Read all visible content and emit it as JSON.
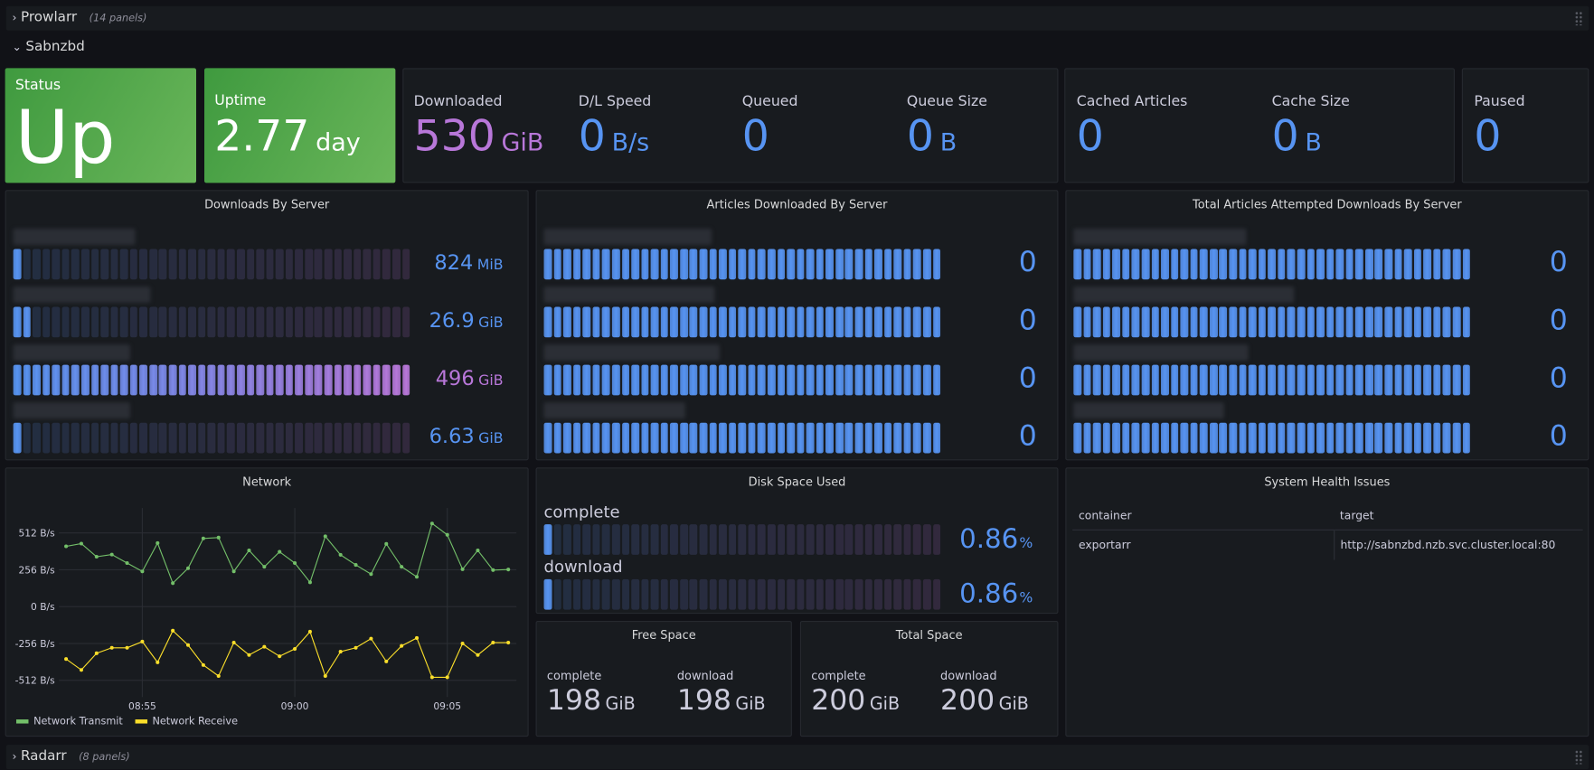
{
  "rows": {
    "prowlarr": {
      "title": "Prowlarr",
      "count": "(14 panels)",
      "collapsed": true
    },
    "sabnzbd": {
      "title": "Sabnzbd",
      "collapsed": false
    },
    "radarr": {
      "title": "Radarr",
      "count": "(8 panels)",
      "collapsed": true
    }
  },
  "colors": {
    "blue": "#5794F2",
    "purple": "#B877D9",
    "green": "#73BF69",
    "yellow": "#FADE2A",
    "panel": "#181B1F",
    "background": "#111217"
  },
  "stats": {
    "status": {
      "title": "Status",
      "value": "Up"
    },
    "uptime": {
      "title": "Uptime",
      "value": "2.77",
      "unit": "day"
    },
    "downloaded": {
      "title": "Downloaded",
      "value": "530",
      "unit": "GiB"
    },
    "dl_speed": {
      "title": "D/L Speed",
      "value": "0",
      "unit": "B/s"
    },
    "queued": {
      "title": "Queued",
      "value": "0"
    },
    "queue_size": {
      "title": "Queue Size",
      "value": "0",
      "unit": "B"
    },
    "cached_articles": {
      "title": "Cached Articles",
      "value": "0"
    },
    "cache_size": {
      "title": "Cache Size",
      "value": "0",
      "unit": "B"
    },
    "paused": {
      "title": "Paused",
      "value": "0"
    }
  },
  "gauges": [
    {
      "title": "Downloads By Server",
      "gradient": true,
      "rows": [
        {
          "value": "824",
          "unit": "MiB",
          "fill": 0.02,
          "color": "#5794F2"
        },
        {
          "value": "26.9",
          "unit": "GiB",
          "fill": 0.06,
          "color": "#5794F2"
        },
        {
          "value": "496",
          "unit": "GiB",
          "fill": 1.0,
          "color": "#B877D9"
        },
        {
          "value": "6.63",
          "unit": "GiB",
          "fill": 0.02,
          "color": "#5794F2"
        }
      ]
    },
    {
      "title": "Articles Downloaded By Server",
      "gradient": false,
      "rows": [
        {
          "value": "0",
          "fill": 1.0,
          "color": "#5794F2"
        },
        {
          "value": "0",
          "fill": 1.0,
          "color": "#5794F2"
        },
        {
          "value": "0",
          "fill": 1.0,
          "color": "#5794F2"
        },
        {
          "value": "0",
          "fill": 1.0,
          "color": "#5794F2"
        }
      ]
    },
    {
      "title": "Total Articles Attempted Downloads By Server",
      "gradient": false,
      "rows": [
        {
          "value": "0",
          "fill": 1.0,
          "color": "#5794F2"
        },
        {
          "value": "0",
          "fill": 1.0,
          "color": "#5794F2"
        },
        {
          "value": "0",
          "fill": 1.0,
          "color": "#5794F2"
        },
        {
          "value": "0",
          "fill": 1.0,
          "color": "#5794F2"
        }
      ]
    }
  ],
  "disk_used": {
    "title": "Disk Space Used",
    "rows": [
      {
        "label": "complete",
        "value": "0.86",
        "unit": "%",
        "fill": 0.0086
      },
      {
        "label": "download",
        "value": "0.86",
        "unit": "%",
        "fill": 0.0086
      }
    ]
  },
  "free_space": {
    "title": "Free Space",
    "items": [
      {
        "label": "complete",
        "value": "198",
        "unit": "GiB"
      },
      {
        "label": "download",
        "value": "198",
        "unit": "GiB"
      }
    ]
  },
  "total_space": {
    "title": "Total Space",
    "items": [
      {
        "label": "complete",
        "value": "200",
        "unit": "GiB"
      },
      {
        "label": "download",
        "value": "200",
        "unit": "GiB"
      }
    ]
  },
  "health": {
    "title": "System Health Issues",
    "columns": [
      "container",
      "target"
    ],
    "rows": [
      [
        "exportarr",
        "http://sabnzbd.nzb.svc.cluster.local:80"
      ]
    ]
  },
  "chart_data": {
    "type": "line",
    "title": "Network",
    "y_ticks": [
      "512 B/s",
      "256 B/s",
      "0 B/s",
      "-256 B/s",
      "-512 B/s"
    ],
    "y_tick_values": [
      512,
      256,
      0,
      -256,
      -512
    ],
    "x_ticks": [
      "08:55",
      "09:00",
      "09:05"
    ],
    "ylim": [
      -600,
      600
    ],
    "grid": true,
    "legend": "bottom-left",
    "x": [
      "08:52:30",
      "08:53:00",
      "08:53:30",
      "08:54:00",
      "08:54:30",
      "08:55:00",
      "08:55:30",
      "08:56:00",
      "08:56:30",
      "08:57:00",
      "08:57:30",
      "08:58:00",
      "08:58:30",
      "08:59:00",
      "08:59:30",
      "09:00:00",
      "09:00:30",
      "09:01:00",
      "09:01:30",
      "09:02:00",
      "09:02:30",
      "09:03:00",
      "09:03:30",
      "09:04:00",
      "09:04:30",
      "09:05:00",
      "09:05:30",
      "09:06:00",
      "09:06:30",
      "09:07:00"
    ],
    "series": [
      {
        "name": "Network Transmit",
        "color": "#73BF69",
        "values": [
          419,
          438,
          347,
          362,
          303,
          245,
          442,
          163,
          267,
          474,
          480,
          245,
          391,
          277,
          381,
          303,
          169,
          489,
          360,
          290,
          226,
          436,
          277,
          207,
          578,
          499,
          260,
          391,
          254,
          258
        ]
      },
      {
        "name": "Network Receive",
        "color": "#FADE2A",
        "values": [
          -364,
          -440,
          -324,
          -286,
          -286,
          -243,
          -387,
          -167,
          -267,
          -406,
          -482,
          -250,
          -336,
          -279,
          -345,
          -294,
          -174,
          -482,
          -313,
          -286,
          -222,
          -381,
          -273,
          -218,
          -491,
          -491,
          -256,
          -336,
          -250,
          -250
        ]
      }
    ]
  }
}
